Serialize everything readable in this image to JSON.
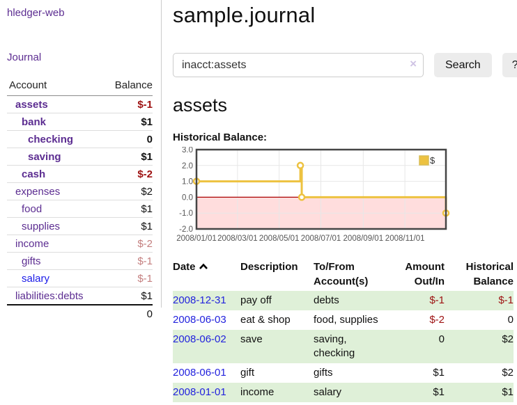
{
  "app": {
    "title": "hledger-web",
    "nav_journal": "Journal"
  },
  "colors": {
    "link_purple": "#5c2d91",
    "link_blue": "#1a1ae8",
    "negative_bold": "#9d1111",
    "negative_soft": "#c47f7f",
    "row_stripe_green": "#dff0d8",
    "series_gold": "#edc240",
    "negative_region_pink": "#ffdddd",
    "zero_line_red": "#aa0000",
    "button_gray": "#ececec"
  },
  "sidebar": {
    "headers": {
      "account": "Account",
      "balance": "Balance"
    },
    "accounts": [
      {
        "name": "assets",
        "indent": 0,
        "bold": true,
        "balance": "$-1",
        "negative": true,
        "blue": false
      },
      {
        "name": "bank",
        "indent": 1,
        "bold": true,
        "balance": "$1",
        "negative": false,
        "blue": false
      },
      {
        "name": "checking",
        "indent": 2,
        "bold": true,
        "balance": "0",
        "negative": false,
        "blue": false
      },
      {
        "name": "saving",
        "indent": 2,
        "bold": true,
        "balance": "$1",
        "negative": false,
        "blue": false
      },
      {
        "name": "cash",
        "indent": 1,
        "bold": true,
        "balance": "$-2",
        "negative": true,
        "blue": false
      },
      {
        "name": "expenses",
        "indent": 0,
        "bold": false,
        "balance": "$2",
        "negative": false,
        "blue": false
      },
      {
        "name": "food",
        "indent": 1,
        "bold": false,
        "balance": "$1",
        "negative": false,
        "blue": false
      },
      {
        "name": "supplies",
        "indent": 1,
        "bold": false,
        "balance": "$1",
        "negative": false,
        "blue": false
      },
      {
        "name": "income",
        "indent": 0,
        "bold": false,
        "balance": "$-2",
        "negative": true,
        "blue": false
      },
      {
        "name": "gifts",
        "indent": 1,
        "bold": false,
        "balance": "$-1",
        "negative": true,
        "blue": false
      },
      {
        "name": "salary",
        "indent": 1,
        "bold": false,
        "balance": "$-1",
        "negative": true,
        "blue": true
      },
      {
        "name": "liabilities:debts",
        "indent": 0,
        "bold": false,
        "balance": "$1",
        "negative": false,
        "blue": false
      }
    ],
    "total": "0"
  },
  "header": {
    "title": "sample.journal"
  },
  "search": {
    "value": "inacct:assets",
    "clear_icon": "×",
    "button_label": "Search",
    "help_label": "?"
  },
  "account_page": {
    "title": "assets",
    "chart_label": "Historical Balance:"
  },
  "chart_data": {
    "type": "line",
    "title": "Historical Balance:",
    "style": "step",
    "series": [
      {
        "name": "$",
        "color": "#edc240",
        "points": [
          {
            "x": "2008-01-01",
            "y": 1
          },
          {
            "x": "2008-06-01",
            "y": 2
          },
          {
            "x": "2008-06-03",
            "y": 0
          },
          {
            "x": "2008-12-31",
            "y": -1
          }
        ]
      }
    ],
    "ylim": [
      -2,
      3
    ],
    "yticks": [
      3,
      2,
      1,
      0,
      -1,
      -2
    ],
    "xlim": [
      "2008/01/01",
      "2008/12/31"
    ],
    "xticks": [
      "2008/01/01",
      "2008/03/01",
      "2008/05/01",
      "2008/07/01",
      "2008/09/01",
      "2008/11/01"
    ],
    "legend": {
      "position": "top-right",
      "label": "$"
    },
    "grid": true,
    "negative_region_color": "#ffdddd",
    "zero_line_color": "#aa0000"
  },
  "register": {
    "headers": [
      {
        "label": "Date"
      },
      {
        "label": "Description"
      },
      {
        "label": "To/From Account(s)"
      },
      {
        "label": "Amount Out/In"
      },
      {
        "label": "Historical Balance"
      }
    ],
    "rows": [
      {
        "date": "2008-12-31",
        "description": "pay off",
        "accounts": "debts",
        "amount": "$-1",
        "amount_negative": true,
        "balance": "$-1",
        "balance_negative": true
      },
      {
        "date": "2008-06-03",
        "description": "eat & shop",
        "accounts": "food, supplies",
        "amount": "$-2",
        "amount_negative": true,
        "balance": "0",
        "balance_negative": false
      },
      {
        "date": "2008-06-02",
        "description": "save",
        "accounts": "saving, checking",
        "amount": "0",
        "amount_negative": false,
        "balance": "$2",
        "balance_negative": false
      },
      {
        "date": "2008-06-01",
        "description": "gift",
        "accounts": "gifts",
        "amount": "$1",
        "amount_negative": false,
        "balance": "$2",
        "balance_negative": false
      },
      {
        "date": "2008-01-01",
        "description": "income",
        "accounts": "salary",
        "amount": "$1",
        "amount_negative": false,
        "balance": "$1",
        "balance_negative": false
      }
    ]
  }
}
